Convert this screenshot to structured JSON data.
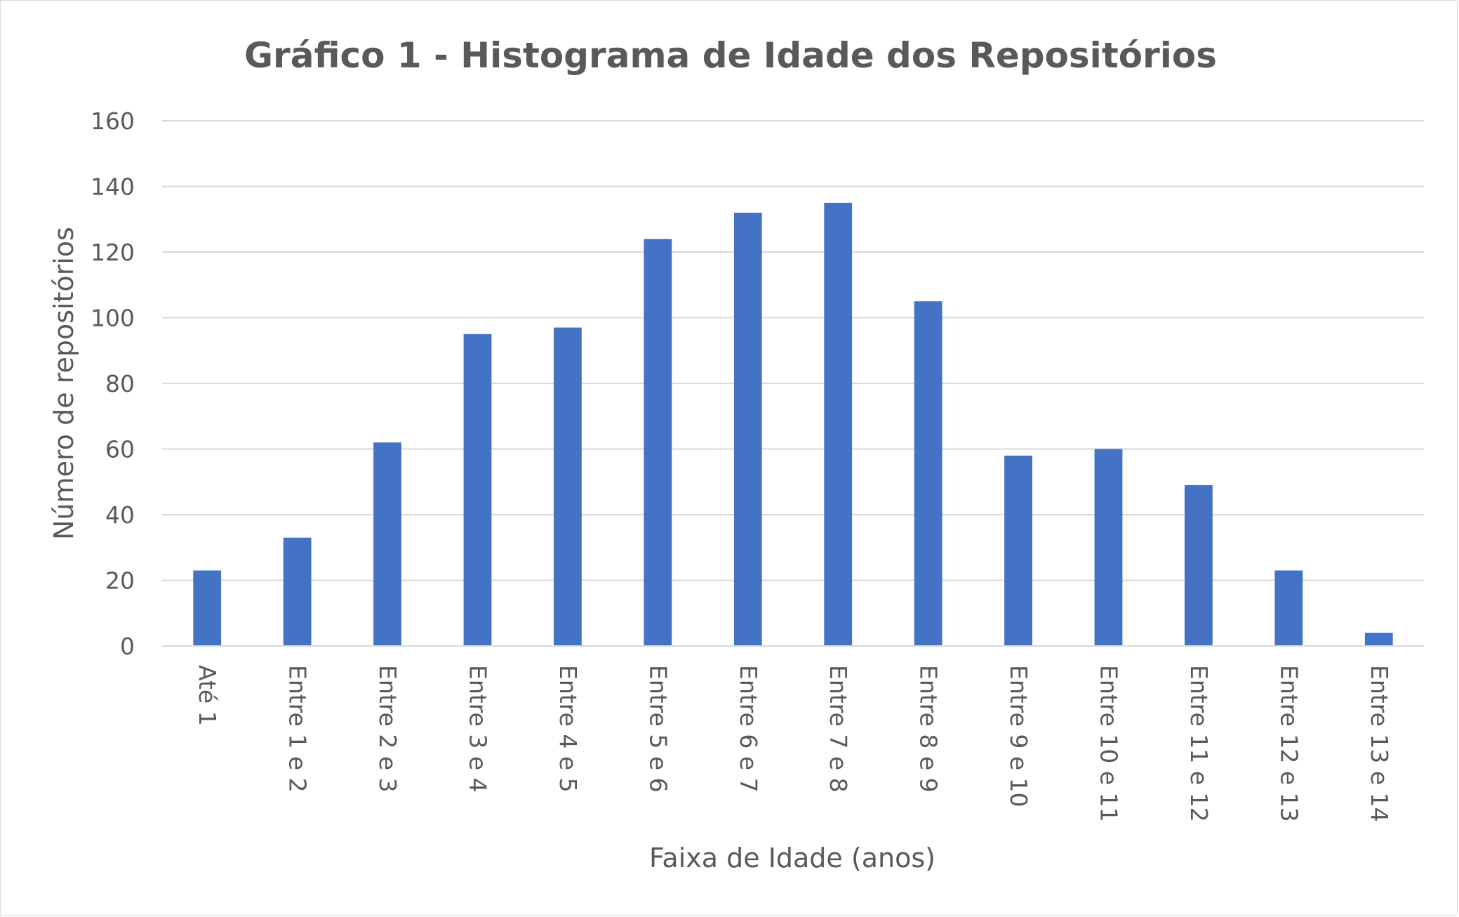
{
  "chart_data": {
    "type": "bar",
    "title": "Gráfico 1 - Histograma de Idade dos Repositórios",
    "xlabel": "Faixa de Idade (anos)",
    "ylabel": "Número de repositórios",
    "categories": [
      "Até 1",
      "Entre 1 e 2",
      "Entre 2 e 3",
      "Entre 3 e 4",
      "Entre 4 e 5",
      "Entre 5 e 6",
      "Entre 6 e 7",
      "Entre 7 e 8",
      "Entre 8 e 9",
      "Entre 9 e 10",
      "Entre 10 e 11",
      "Entre 11 e 12",
      "Entre 12 e 13",
      "Entre 13 e 14"
    ],
    "values": [
      23,
      33,
      62,
      95,
      97,
      124,
      132,
      135,
      105,
      58,
      60,
      49,
      23,
      4
    ],
    "ylim": [
      0,
      160
    ],
    "yticks": [
      "0",
      "20",
      "40",
      "60",
      "80",
      "100",
      "120",
      "140",
      "160"
    ],
    "grid": true,
    "legend": "none",
    "bar_color": "#4472c4",
    "grid_color": "#d9d9d9",
    "text_color": "#595959"
  }
}
